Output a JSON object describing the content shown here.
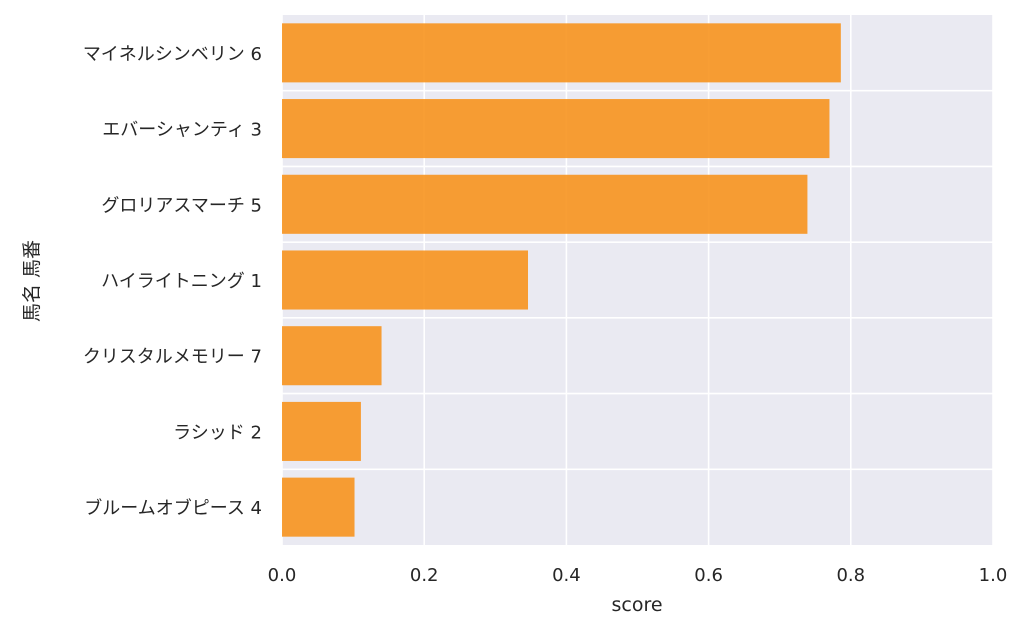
{
  "chart_data": {
    "type": "bar",
    "orientation": "horizontal",
    "categories": [
      "マイネルシンベリン 6",
      "エバーシャンティ 3",
      "グロリアスマーチ 5",
      "ハイライトニング 1",
      "クリスタルメモリー 7",
      "ラシッド 2",
      "ブルームオブピース 4"
    ],
    "values": [
      0.786,
      0.77,
      0.739,
      0.346,
      0.14,
      0.111,
      0.102
    ],
    "xlabel": "score",
    "ylabel": "馬名 馬番",
    "xlim": [
      0,
      1.0
    ],
    "xticks": [
      "0.0",
      "0.2",
      "0.4",
      "0.6",
      "0.8",
      "1.0"
    ],
    "grid": true,
    "colors": {
      "bar": "#f7931e",
      "plot_background": "#eaeaf2",
      "grid": "#ffffff"
    }
  }
}
